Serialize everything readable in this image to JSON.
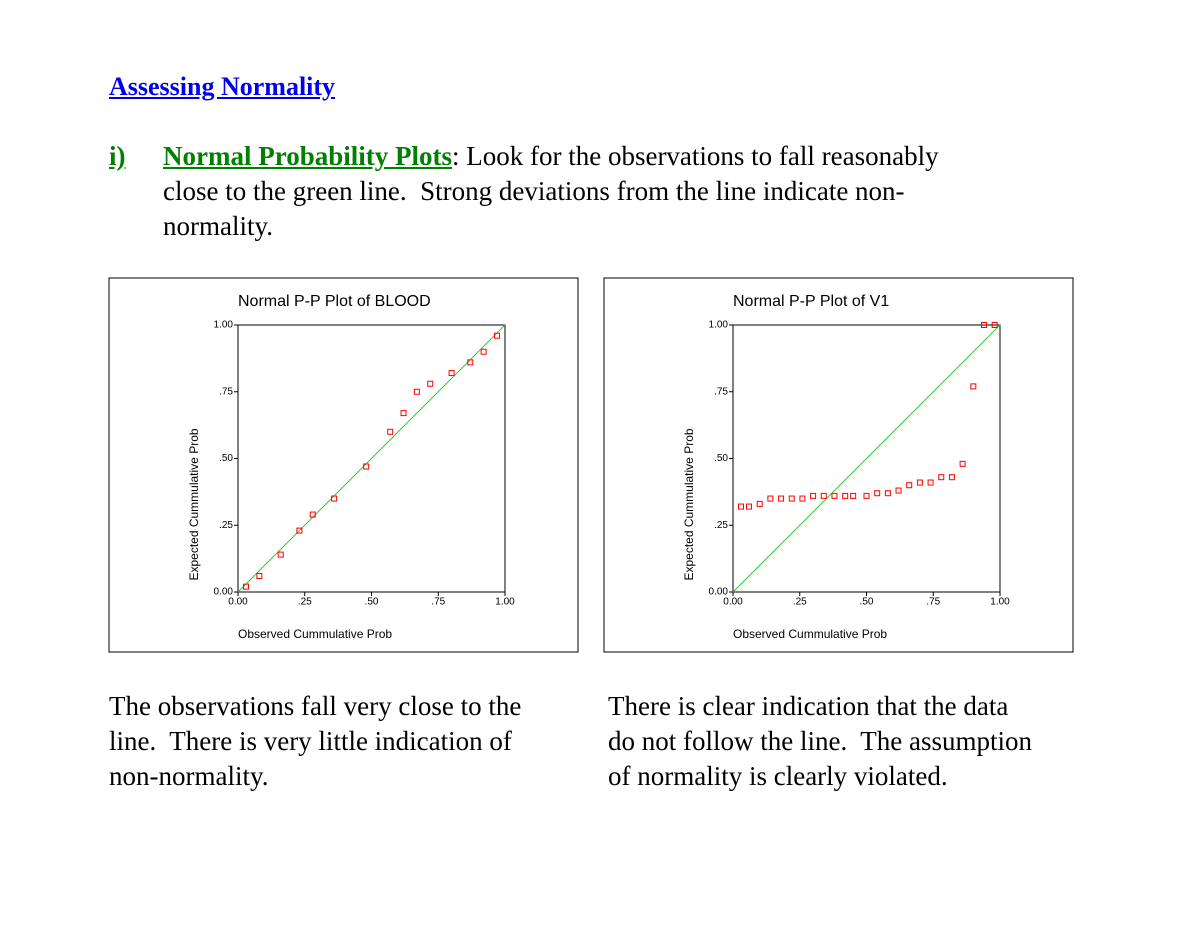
{
  "heading": "Assessing Normality",
  "section": {
    "number": "i)",
    "title": "Normal Probability Plots",
    "lines": [
      ": Look for the observations to fall reasonably",
      "close to the green line.  Strong deviations from the line indicate non-",
      "normality."
    ]
  },
  "chart_data": [
    {
      "type": "scatter",
      "title": "Normal P-P Plot of BLOOD",
      "x_label": "Observed Cummulative Prob",
      "y_label": "Expected Cummulative Prob",
      "x": [
        0.03,
        0.08,
        0.16,
        0.23,
        0.28,
        0.36,
        0.48,
        0.57,
        0.62,
        0.67,
        0.72,
        0.8,
        0.87,
        0.92,
        0.97
      ],
      "y": [
        0.02,
        0.06,
        0.14,
        0.23,
        0.29,
        0.35,
        0.47,
        0.6,
        0.67,
        0.75,
        0.78,
        0.82,
        0.86,
        0.9,
        0.96
      ],
      "xlim": [
        0,
        1
      ],
      "ylim": [
        0,
        1
      ],
      "xticks": [
        {
          "value": 0,
          "label": "0.00"
        },
        {
          "value": 0.25,
          "label": ".25"
        },
        {
          "value": 0.5,
          "label": ".50"
        },
        {
          "value": 0.75,
          "label": ".75"
        },
        {
          "value": 1,
          "label": "1.00"
        }
      ],
      "yticks": [
        {
          "value": 0,
          "label": "0.00"
        },
        {
          "value": 0.25,
          "label": ".25"
        },
        {
          "value": 0.5,
          "label": ".50"
        },
        {
          "value": 0.75,
          "label": ".75"
        },
        {
          "value": 1,
          "label": "1.00"
        }
      ],
      "color": "#ff0000",
      "reference_line": true,
      "line_color": "#33cc33"
    },
    {
      "type": "scatter",
      "title": "Normal P-P Plot of V1",
      "x_label": "Observed Cummulative Prob",
      "y_label": "Expected Cummulative Prob",
      "x": [
        0.03,
        0.06,
        0.1,
        0.14,
        0.18,
        0.22,
        0.26,
        0.3,
        0.34,
        0.38,
        0.42,
        0.45,
        0.5,
        0.54,
        0.58,
        0.62,
        0.66,
        0.7,
        0.74,
        0.78,
        0.82,
        0.86,
        0.9,
        0.94,
        0.98
      ],
      "y": [
        0.32,
        0.32,
        0.33,
        0.35,
        0.35,
        0.35,
        0.35,
        0.36,
        0.36,
        0.36,
        0.36,
        0.36,
        0.36,
        0.37,
        0.37,
        0.38,
        0.4,
        0.41,
        0.41,
        0.43,
        0.43,
        0.48,
        0.77,
        1.0,
        1.0
      ],
      "xlim": [
        0,
        1
      ],
      "ylim": [
        0,
        1
      ],
      "xticks": [
        {
          "value": 0,
          "label": "0.00"
        },
        {
          "value": 0.25,
          "label": ".25"
        },
        {
          "value": 0.5,
          "label": ".50"
        },
        {
          "value": 0.75,
          "label": ".75"
        },
        {
          "value": 1,
          "label": "1.00"
        }
      ],
      "yticks": [
        {
          "value": 0,
          "label": "0.00"
        },
        {
          "value": 0.25,
          "label": ".25"
        },
        {
          "value": 0.5,
          "label": ".50"
        },
        {
          "value": 0.75,
          "label": ".75"
        },
        {
          "value": 1,
          "label": "1.00"
        }
      ],
      "color": "#ff0000",
      "reference_line": true,
      "line_color": "#33cc33"
    }
  ],
  "captions": [
    [
      "The observations fall very close to the",
      "line.  There is very little indication of",
      "non-normality."
    ],
    [
      "There is clear indication that the data",
      "do not follow the line.  The assumption",
      "of normality is clearly violated."
    ]
  ]
}
